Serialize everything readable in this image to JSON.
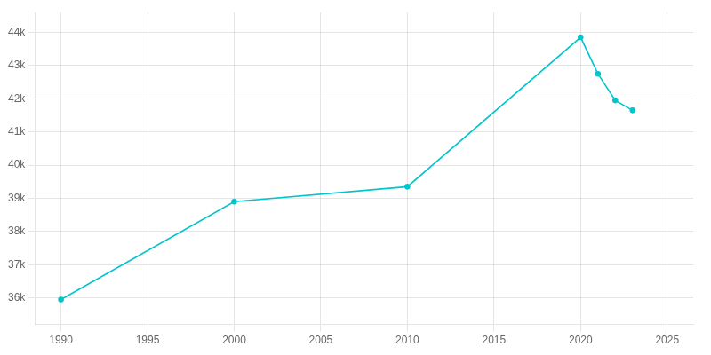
{
  "chart_data": {
    "type": "line",
    "x": [
      1990,
      2000,
      2010,
      2020,
      2021,
      2022,
      2023
    ],
    "values": [
      35950,
      38900,
      39350,
      43850,
      42750,
      41950,
      41650
    ],
    "color": "#00c5cd",
    "marker": "circle",
    "xlim": [
      1988.5,
      2026.5
    ],
    "xticks": [
      1990,
      1995,
      2000,
      2005,
      2010,
      2015,
      2020,
      2025
    ],
    "ylim": [
      35200,
      44600
    ],
    "yticks": [
      {
        "value": 36000,
        "label": "36k"
      },
      {
        "value": 37000,
        "label": "37k"
      },
      {
        "value": 38000,
        "label": "38k"
      },
      {
        "value": 39000,
        "label": "39k"
      },
      {
        "value": 40000,
        "label": "40k"
      },
      {
        "value": 41000,
        "label": "41k"
      },
      {
        "value": 42000,
        "label": "42k"
      },
      {
        "value": 43000,
        "label": "43k"
      },
      {
        "value": 44000,
        "label": "44k"
      }
    ],
    "grid": true
  }
}
